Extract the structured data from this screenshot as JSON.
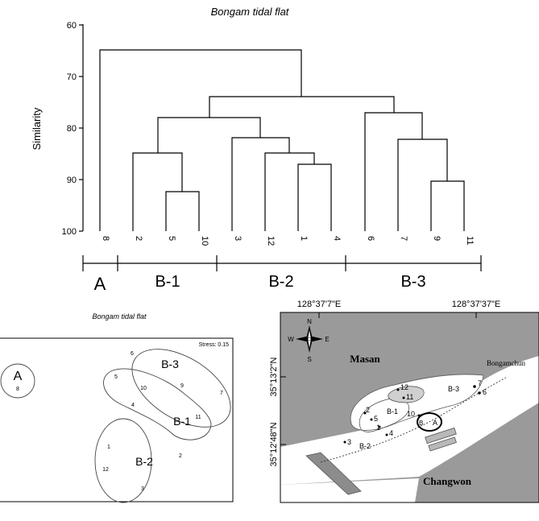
{
  "dendrogram": {
    "title": "Bongam tidal flat",
    "ylabel": "Similarity",
    "yticks": [
      "60",
      "70",
      "80",
      "90",
      "100"
    ],
    "leaves": [
      "8",
      "2",
      "5",
      "10",
      "3",
      "12",
      "1",
      "4",
      "6",
      "7",
      "9",
      "11"
    ],
    "groups": [
      "A",
      "B-1",
      "B-2",
      "B-3"
    ],
    "merges": [
      {
        "pair": [
          "5",
          "10"
        ],
        "similarity": 92.5
      },
      {
        "pair": [
          "2",
          "5+10"
        ],
        "similarity": 85
      },
      {
        "pair": [
          "1",
          "4"
        ],
        "similarity": 87.3
      },
      {
        "pair": [
          "12",
          "1+4"
        ],
        "similarity": 85
      },
      {
        "pair": [
          "3",
          "12+1+4"
        ],
        "similarity": 82
      },
      {
        "pair": [
          "B-1",
          "B-2"
        ],
        "similarity": 78
      },
      {
        "pair": [
          "9",
          "11"
        ],
        "similarity": 90.5
      },
      {
        "pair": [
          "7",
          "9+11"
        ],
        "similarity": 82.3
      },
      {
        "pair": [
          "6",
          "7+9+11"
        ],
        "similarity": 77.3
      },
      {
        "pair": [
          "B-1+B-2",
          "B-3"
        ],
        "similarity": 74
      },
      {
        "pair": [
          "8",
          "B"
        ],
        "similarity": 65
      }
    ]
  },
  "mds": {
    "title": "Bongam tidal flat",
    "stress": "Stress: 0.15",
    "group_labels": [
      "A",
      "B-3",
      "B-1",
      "B-2"
    ],
    "points": [
      "8",
      "6",
      "9",
      "7",
      "5",
      "10",
      "11",
      "4",
      "1",
      "12",
      "2",
      "3"
    ]
  },
  "map": {
    "lon_labels": [
      "128°37'7\"E",
      "128°37'37\"E"
    ],
    "lat_labels": [
      "35°13'2\"N",
      "35°12'48\"N"
    ],
    "compass": [
      "N",
      "E",
      "S",
      "W"
    ],
    "places": [
      "Masan",
      "Changwon",
      "Bongamchun"
    ],
    "group_labels": [
      "B-3",
      "B-1",
      "B-2",
      "A",
      "B"
    ],
    "stations": [
      "12",
      "7",
      "6",
      "11",
      "10",
      "2",
      "5",
      "1",
      "4",
      "3"
    ],
    "colors": {
      "land": "#9a9a9a",
      "water": "#ffffff"
    }
  }
}
